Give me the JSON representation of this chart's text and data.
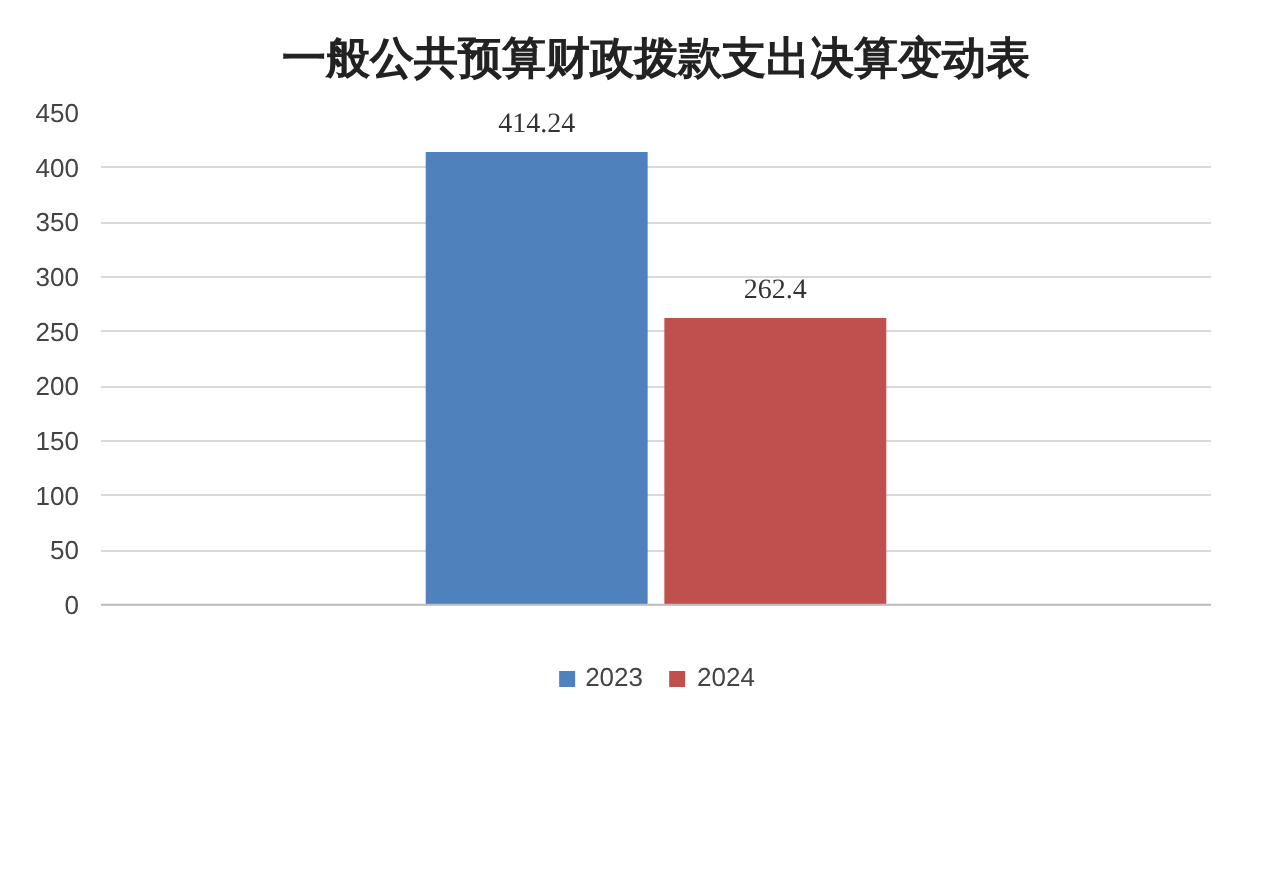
{
  "chart_data": {
    "type": "bar",
    "title": "一般公共预算财政拨款支出决算变动表",
    "categories": [
      null
    ],
    "series": [
      {
        "name": "2023",
        "color": "#4f81bd",
        "values": [
          414.24
        ]
      },
      {
        "name": "2024",
        "color": "#c0504d",
        "values": [
          262.4
        ]
      }
    ],
    "ylim": [
      0,
      450
    ],
    "yticks": [
      0,
      50,
      100,
      150,
      200,
      250,
      300,
      350,
      400,
      450
    ],
    "grid": "y",
    "legend": "bottom",
    "data_labels": true
  }
}
